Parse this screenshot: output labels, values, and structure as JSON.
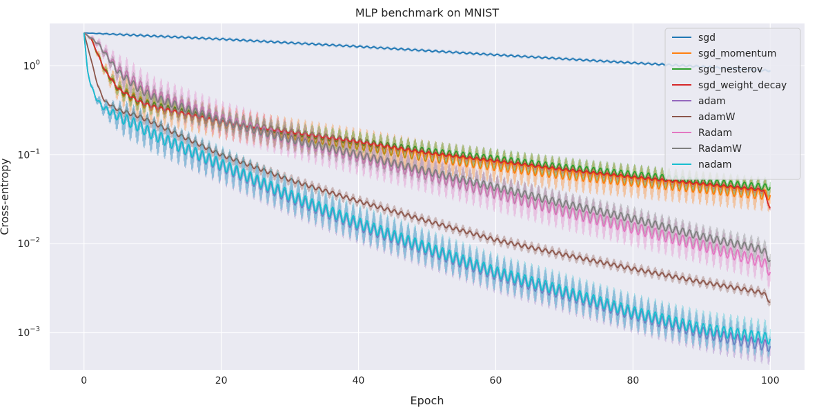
{
  "chart_data": {
    "type": "line",
    "title": "MLP benchmark on MNIST",
    "xlabel": "Epoch",
    "ylabel": "Cross-entropy",
    "xlim": [
      -5,
      105
    ],
    "ylim": [
      0.00038,
      3.0
    ],
    "yscale": "log",
    "grid": true,
    "legend_position": "top-right",
    "x_ticks": [
      0,
      20,
      40,
      60,
      80,
      100
    ],
    "x_tick_labels": [
      "0",
      "20",
      "40",
      "60",
      "80",
      "100"
    ],
    "y_ticks": [
      1,
      0.1,
      0.01,
      0.001
    ],
    "y_tick_bases": [
      "10",
      "10",
      "10",
      "10"
    ],
    "y_tick_exps": [
      "0",
      "−1",
      "−2",
      "−3"
    ],
    "series": [
      {
        "name": "sgd",
        "color": "#1f77b4",
        "x": [
          0,
          20,
          40,
          60,
          80,
          90,
          100
        ],
        "values": [
          2.35,
          2.0,
          1.65,
          1.33,
          1.08,
          0.98,
          0.88
        ],
        "osc": 0.02
      },
      {
        "name": "sgd_momentum",
        "color": "#ff7f0e",
        "x": [
          0,
          1,
          3,
          5,
          8,
          10,
          20,
          30,
          40,
          50,
          60,
          70,
          80,
          90,
          100
        ],
        "values": [
          2.35,
          2.05,
          0.9,
          0.55,
          0.4,
          0.35,
          0.23,
          0.17,
          0.13,
          0.095,
          0.075,
          0.06,
          0.05,
          0.042,
          0.035
        ],
        "osc": 0.16
      },
      {
        "name": "sgd_nesterov",
        "color": "#2ca02c",
        "x": [
          0,
          1,
          3,
          5,
          8,
          10,
          20,
          30,
          40,
          50,
          60,
          70,
          80,
          90,
          100
        ],
        "values": [
          2.35,
          2.05,
          0.9,
          0.55,
          0.4,
          0.36,
          0.24,
          0.18,
          0.14,
          0.11,
          0.09,
          0.072,
          0.06,
          0.05,
          0.043
        ],
        "osc": 0.1
      },
      {
        "name": "sgd_weight_decay",
        "color": "#d62728",
        "x": [
          0,
          1,
          3,
          5,
          8,
          10,
          20,
          30,
          40,
          50,
          60,
          70,
          80,
          90,
          99,
          100
        ],
        "values": [
          2.35,
          2.05,
          0.9,
          0.55,
          0.4,
          0.35,
          0.235,
          0.18,
          0.14,
          0.105,
          0.085,
          0.068,
          0.056,
          0.047,
          0.04,
          0.025
        ],
        "osc": 0.04
      },
      {
        "name": "adam",
        "color": "#9467bd",
        "x": [
          0,
          0.5,
          1,
          2,
          3,
          5,
          8,
          10,
          20,
          30,
          40,
          50,
          60,
          70,
          80,
          90,
          100
        ],
        "values": [
          2.35,
          0.9,
          0.6,
          0.4,
          0.33,
          0.27,
          0.21,
          0.17,
          0.075,
          0.033,
          0.016,
          0.0085,
          0.0045,
          0.0027,
          0.0016,
          0.001,
          0.0007
        ],
        "osc": 0.18
      },
      {
        "name": "adamW",
        "color": "#8c564b",
        "x": [
          0,
          1,
          2,
          3,
          5,
          8,
          10,
          20,
          30,
          40,
          50,
          60,
          70,
          80,
          90,
          99,
          100
        ],
        "values": [
          2.35,
          1.2,
          0.6,
          0.4,
          0.32,
          0.27,
          0.23,
          0.1,
          0.052,
          0.03,
          0.018,
          0.011,
          0.0075,
          0.0052,
          0.0037,
          0.0028,
          0.0022
        ],
        "osc": 0.06
      },
      {
        "name": "Radam",
        "color": "#e377c2",
        "x": [
          0,
          2,
          5,
          8,
          10,
          20,
          30,
          40,
          50,
          60,
          70,
          80,
          90,
          99,
          100
        ],
        "values": [
          2.35,
          1.8,
          0.9,
          0.6,
          0.48,
          0.25,
          0.15,
          0.095,
          0.06,
          0.037,
          0.023,
          0.015,
          0.0095,
          0.0062,
          0.0048
        ],
        "osc": 0.18
      },
      {
        "name": "RadamW",
        "color": "#7f7f7f",
        "x": [
          0,
          2,
          5,
          8,
          10,
          20,
          30,
          40,
          50,
          60,
          70,
          80,
          90,
          99,
          100
        ],
        "values": [
          2.35,
          1.8,
          0.85,
          0.55,
          0.45,
          0.24,
          0.15,
          0.1,
          0.065,
          0.043,
          0.028,
          0.019,
          0.012,
          0.0085,
          0.0065
        ],
        "osc": 0.12
      },
      {
        "name": "nadam",
        "color": "#17becf",
        "x": [
          0,
          0.5,
          1,
          2,
          3,
          5,
          8,
          10,
          20,
          30,
          40,
          50,
          60,
          70,
          80,
          90,
          100
        ],
        "values": [
          2.35,
          0.9,
          0.6,
          0.4,
          0.33,
          0.27,
          0.21,
          0.17,
          0.078,
          0.035,
          0.017,
          0.009,
          0.0048,
          0.0029,
          0.0017,
          0.0011,
          0.00085
        ],
        "osc": 0.18
      }
    ]
  }
}
